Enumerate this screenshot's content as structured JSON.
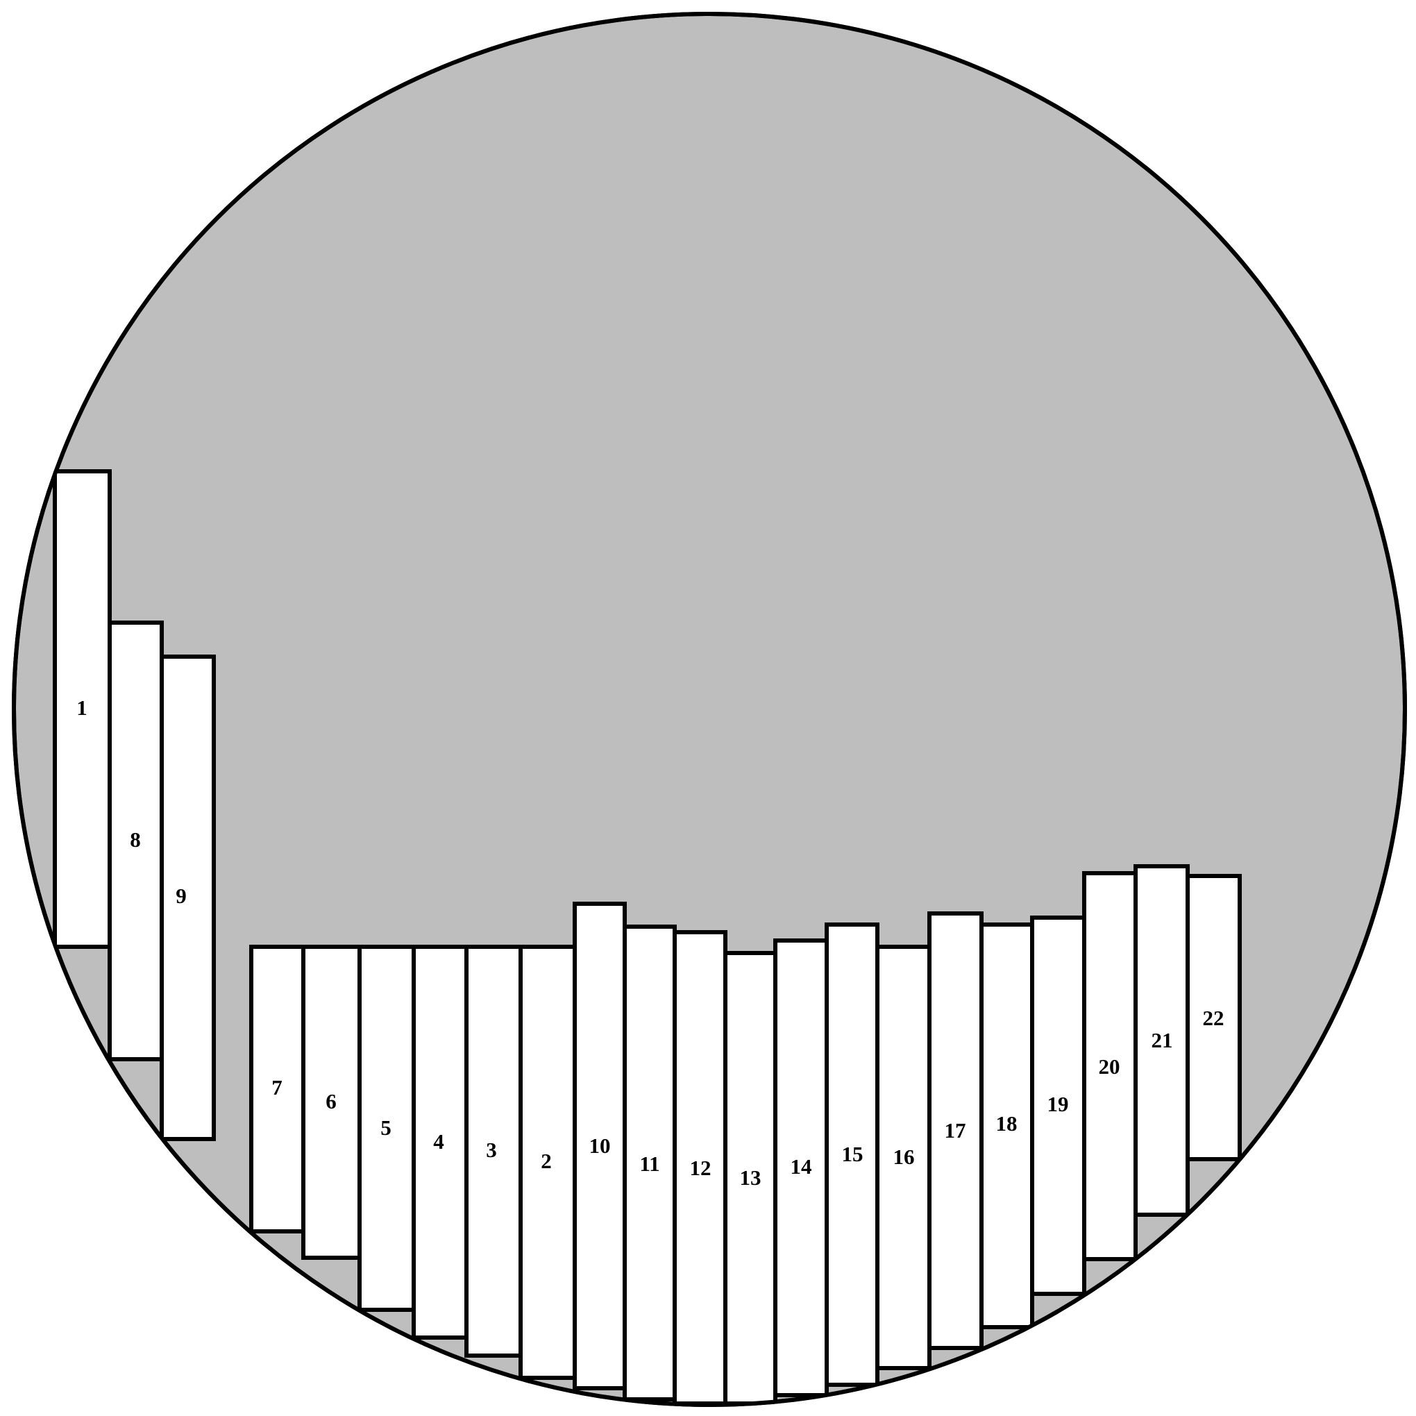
{
  "colors": {
    "disc_fill": "#bebebe",
    "strip_fill": "#ffffff",
    "outline": "#000000"
  },
  "strips": [
    {
      "label": "1"
    },
    {
      "label": "8"
    },
    {
      "label": "9"
    },
    {
      "label": "7"
    },
    {
      "label": "6"
    },
    {
      "label": "5"
    },
    {
      "label": "4"
    },
    {
      "label": "3"
    },
    {
      "label": "2"
    },
    {
      "label": "10"
    },
    {
      "label": "11"
    },
    {
      "label": "12"
    },
    {
      "label": "13"
    },
    {
      "label": "14"
    },
    {
      "label": "15"
    },
    {
      "label": "16"
    },
    {
      "label": "17"
    },
    {
      "label": "18"
    },
    {
      "label": "19"
    },
    {
      "label": "20"
    },
    {
      "label": "21"
    },
    {
      "label": "22"
    }
  ]
}
